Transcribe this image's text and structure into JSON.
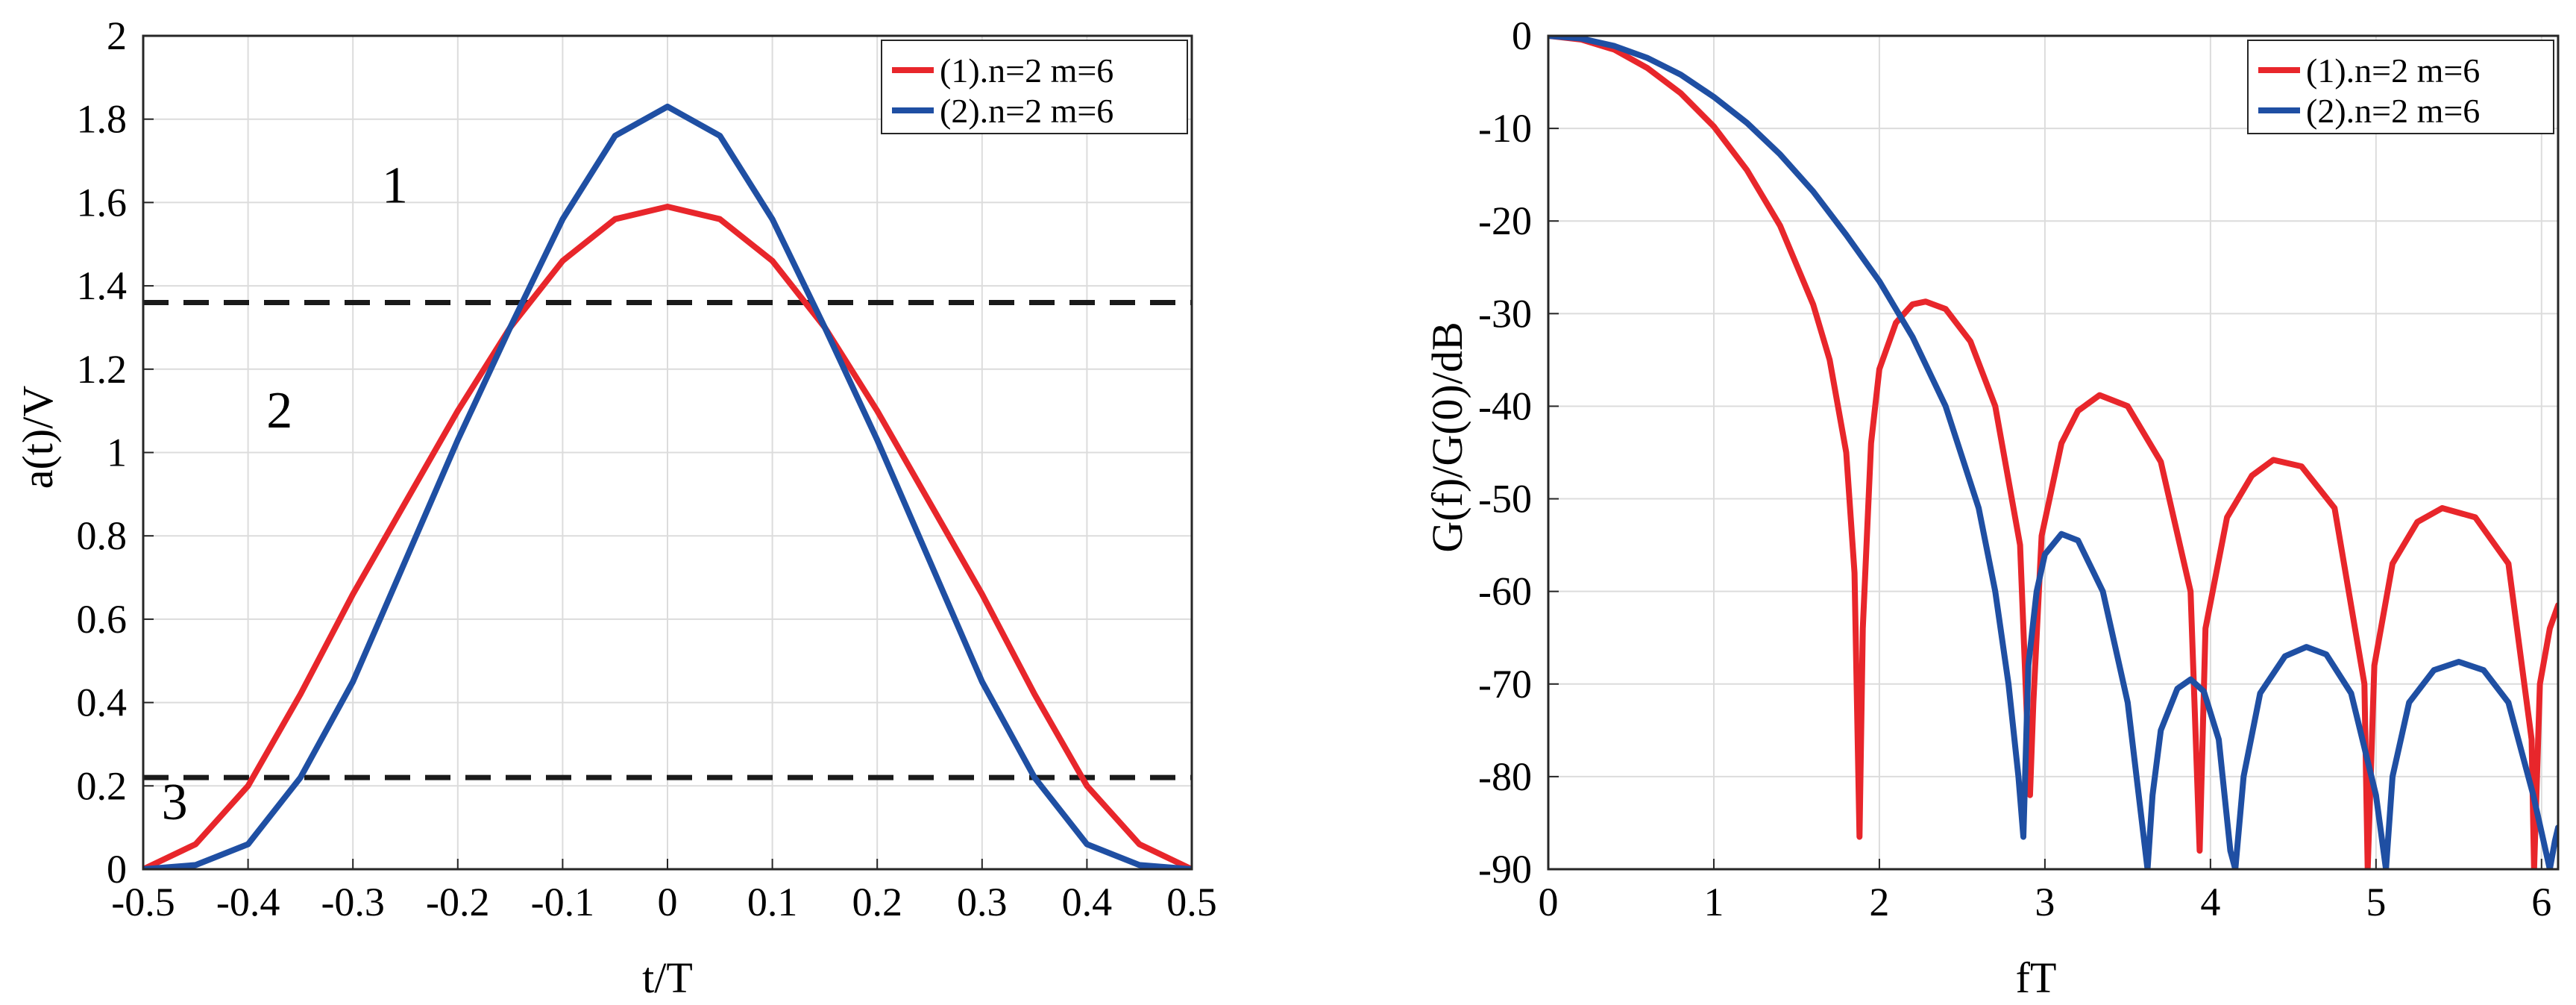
{
  "chart_data": [
    {
      "type": "line",
      "xlabel": "t/T",
      "ylabel": "a(t)/V",
      "xlim": [
        -0.5,
        0.5
      ],
      "ylim": [
        0,
        2
      ],
      "grid": true,
      "legend_location": "top-right",
      "x_ticks": [
        "-0.5",
        "-0.4",
        "-0.3",
        "-0.2",
        "-0.1",
        "0",
        "0.1",
        "0.2",
        "0.3",
        "0.4",
        "0.5"
      ],
      "y_ticks": [
        "0",
        "0.2",
        "0.4",
        "0.6",
        "0.8",
        "1",
        "1.2",
        "1.4",
        "1.6",
        "1.8",
        "2"
      ],
      "series": [
        {
          "name": "(1).n=2 m=6",
          "color": "#e8262b",
          "x": [
            -0.5,
            -0.45,
            -0.4,
            -0.35,
            -0.3,
            -0.25,
            -0.2,
            -0.15,
            -0.1,
            -0.05,
            0,
            0.05,
            0.1,
            0.15,
            0.2,
            0.25,
            0.3,
            0.35,
            0.4,
            0.45,
            0.5
          ],
          "values": [
            0,
            0.06,
            0.2,
            0.42,
            0.66,
            0.88,
            1.1,
            1.3,
            1.46,
            1.56,
            1.59,
            1.56,
            1.46,
            1.3,
            1.1,
            0.88,
            0.66,
            0.42,
            0.2,
            0.06,
            0
          ]
        },
        {
          "name": "(2).n=2 m=6",
          "color": "#1f4fa3",
          "x": [
            -0.5,
            -0.45,
            -0.4,
            -0.35,
            -0.3,
            -0.25,
            -0.2,
            -0.15,
            -0.1,
            -0.05,
            0,
            0.05,
            0.1,
            0.15,
            0.2,
            0.25,
            0.3,
            0.35,
            0.4,
            0.45,
            0.5
          ],
          "values": [
            0,
            0.01,
            0.06,
            0.22,
            0.45,
            0.74,
            1.03,
            1.3,
            1.56,
            1.76,
            1.83,
            1.76,
            1.56,
            1.3,
            1.03,
            0.74,
            0.45,
            0.22,
            0.06,
            0.01,
            0
          ]
        }
      ],
      "reference_lines": [
        {
          "y": 1.36,
          "style": "dashed",
          "color": "#1a1a1a"
        },
        {
          "y": 0.22,
          "style": "dashed",
          "color": "#1a1a1a"
        }
      ],
      "annotations": [
        {
          "text": "1",
          "x": -0.26,
          "y": 1.6
        },
        {
          "text": "2",
          "x": -0.37,
          "y": 1.06
        },
        {
          "text": "3",
          "x": -0.47,
          "y": 0.12
        }
      ]
    },
    {
      "type": "line",
      "xlabel": "fT",
      "ylabel": "G(f)/G(0)/dB",
      "xlim": [
        0,
        6.1
      ],
      "ylim": [
        -90,
        0
      ],
      "grid": true,
      "legend_location": "top-right",
      "x_ticks": [
        "0",
        "1",
        "2",
        "3",
        "4",
        "5",
        "6"
      ],
      "y_ticks": [
        "0",
        "-10",
        "-20",
        "-30",
        "-40",
        "-50",
        "-60",
        "-70",
        "-80",
        "-90"
      ],
      "series": [
        {
          "name": "(1).n=2 m=6",
          "color": "#e8262b",
          "x": [
            0,
            0.2,
            0.4,
            0.6,
            0.8,
            1.0,
            1.2,
            1.4,
            1.6,
            1.7,
            1.8,
            1.85,
            1.88,
            1.9,
            1.95,
            2.0,
            2.1,
            2.2,
            2.28,
            2.4,
            2.55,
            2.7,
            2.85,
            2.91,
            2.93,
            2.98,
            3.1,
            3.2,
            3.33,
            3.5,
            3.7,
            3.88,
            3.935,
            3.97,
            4.1,
            4.25,
            4.38,
            4.55,
            4.75,
            4.93,
            4.95,
            4.99,
            5.1,
            5.25,
            5.4,
            5.6,
            5.8,
            5.94,
            5.955,
            5.99,
            6.05,
            6.1
          ],
          "values": [
            0,
            -0.4,
            -1.5,
            -3.5,
            -6.2,
            -9.8,
            -14.5,
            -20.5,
            -29,
            -35,
            -45,
            -58,
            -86.5,
            -64,
            -44,
            -36,
            -31,
            -29,
            -28.7,
            -29.5,
            -33,
            -40,
            -55,
            -82,
            -72,
            -54,
            -44,
            -40.5,
            -38.8,
            -40,
            -46,
            -60,
            -88,
            -64,
            -52,
            -47.5,
            -45.8,
            -46.5,
            -51,
            -70,
            -90,
            -68,
            -57,
            -52.5,
            -51,
            -52,
            -57,
            -76,
            -90,
            -70,
            -64,
            -61.5
          ]
        },
        {
          "name": "(2).n=2 m=6",
          "color": "#1f4fa3",
          "x": [
            0,
            0.2,
            0.4,
            0.6,
            0.8,
            1.0,
            1.2,
            1.4,
            1.6,
            1.8,
            2.0,
            2.2,
            2.4,
            2.6,
            2.7,
            2.78,
            2.84,
            2.87,
            2.9,
            2.95,
            3.0,
            3.1,
            3.2,
            3.35,
            3.5,
            3.62,
            3.65,
            3.7,
            3.8,
            3.88,
            3.96,
            4.05,
            4.12,
            4.15,
            4.2,
            4.3,
            4.45,
            4.58,
            4.7,
            4.85,
            5.0,
            5.06,
            5.1,
            5.2,
            5.35,
            5.5,
            5.65,
            5.8,
            5.95,
            6.05,
            6.08,
            6.1
          ],
          "values": [
            0,
            -0.3,
            -1.1,
            -2.4,
            -4.2,
            -6.6,
            -9.4,
            -12.8,
            -16.8,
            -21.5,
            -26.5,
            -32.5,
            -40,
            -51,
            -60,
            -70,
            -80,
            -86.5,
            -68,
            -60,
            -56,
            -53.8,
            -54.5,
            -60,
            -72,
            -90,
            -82,
            -75,
            -70.5,
            -69.5,
            -70.8,
            -76,
            -88,
            -90,
            -80,
            -71,
            -67,
            -66,
            -66.8,
            -71,
            -82,
            -90,
            -80,
            -72,
            -68.5,
            -67.6,
            -68.5,
            -72,
            -82,
            -90,
            -87,
            -85.5
          ]
        }
      ]
    }
  ]
}
